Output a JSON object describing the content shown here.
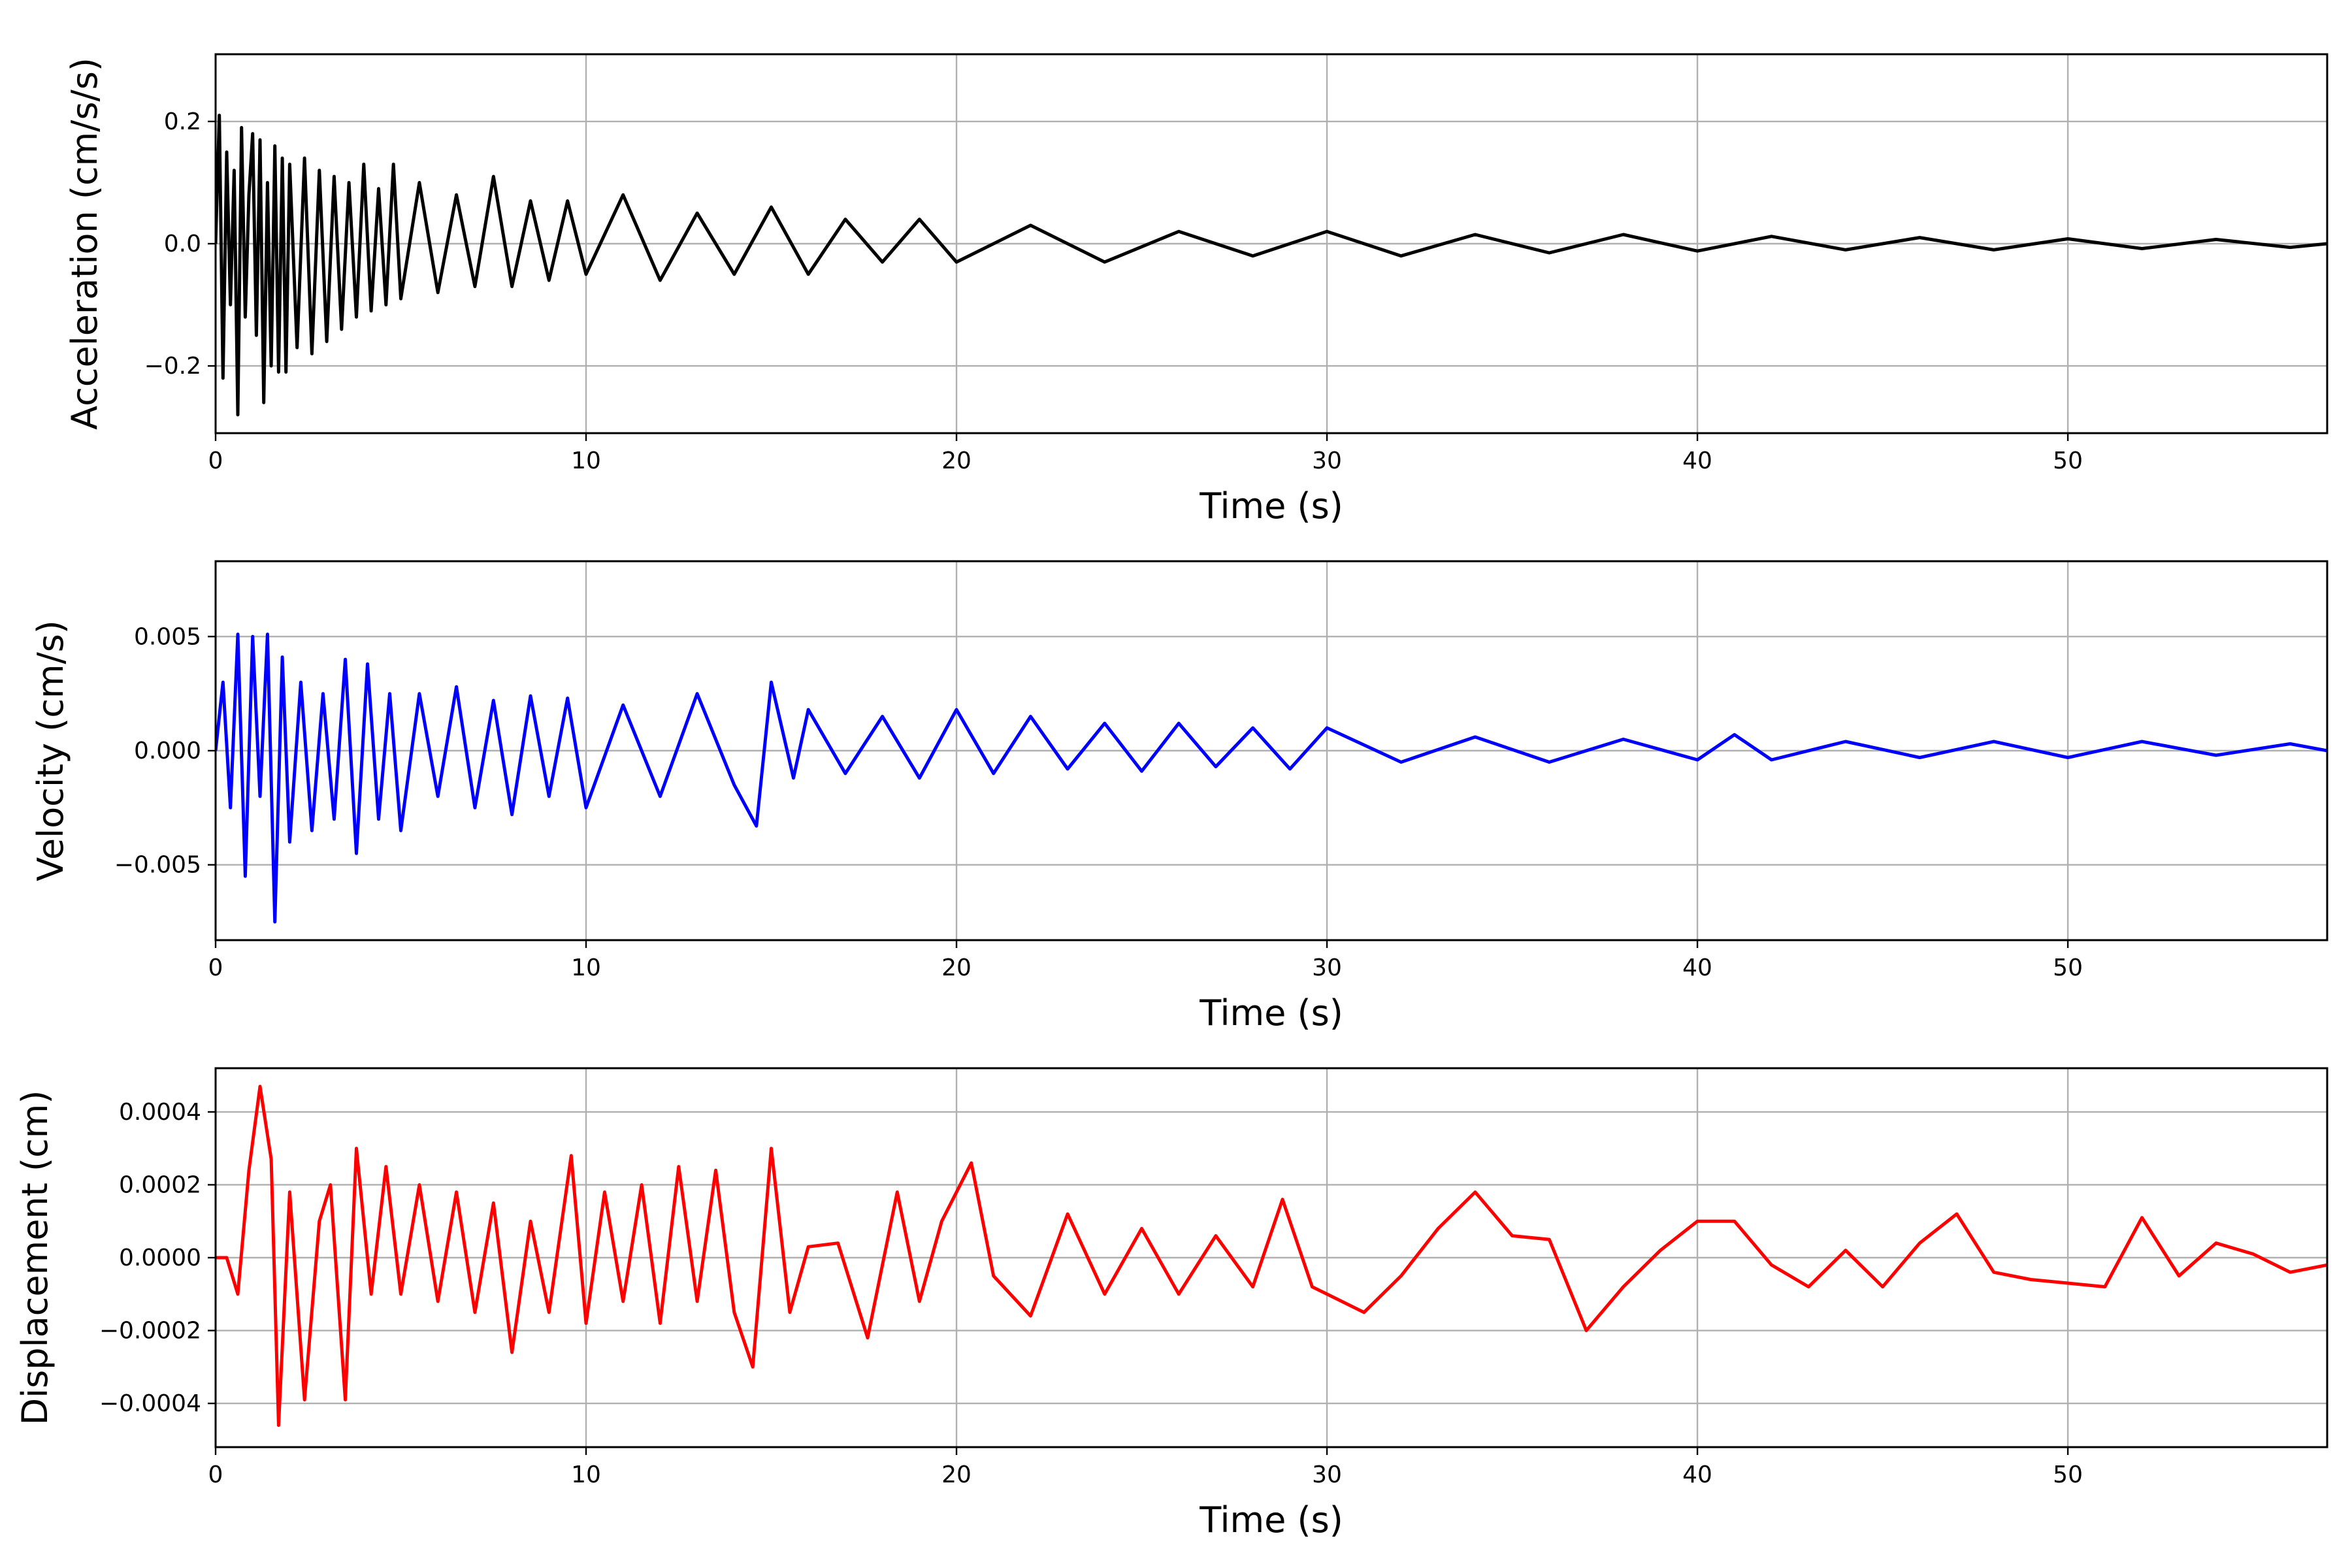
{
  "chart_data": [
    {
      "type": "line",
      "panel": "acceleration",
      "title": "",
      "xlabel": "Time (s)",
      "ylabel": "Acceleration (cm/s/s)",
      "xlim": [
        0,
        57
      ],
      "ylim": [
        -0.31,
        0.31
      ],
      "xticks": [
        0,
        10,
        20,
        30,
        40,
        50
      ],
      "xtick_labels": [
        "0",
        "10",
        "20",
        "30",
        "40",
        "50"
      ],
      "yticks": [
        0.2,
        0.0,
        -0.2
      ],
      "ytick_labels": [
        "0.2",
        "0.0",
        "−0.2"
      ],
      "grid": true,
      "series": [
        {
          "color": "#000000",
          "x": [
            0,
            0.1,
            0.2,
            0.3,
            0.4,
            0.5,
            0.6,
            0.7,
            0.8,
            0.9,
            1.0,
            1.1,
            1.2,
            1.3,
            1.4,
            1.5,
            1.6,
            1.7,
            1.8,
            1.9,
            2.0,
            2.2,
            2.4,
            2.6,
            2.8,
            3.0,
            3.2,
            3.4,
            3.6,
            3.8,
            4.0,
            4.2,
            4.4,
            4.6,
            4.8,
            5.0,
            5.5,
            6.0,
            6.5,
            7.0,
            7.5,
            8.0,
            8.5,
            9.0,
            9.5,
            10.0,
            11.0,
            12.0,
            13.0,
            14.0,
            15.0,
            16.0,
            17.0,
            18.0,
            19.0,
            20.0,
            22.0,
            24.0,
            26.0,
            28.0,
            30.0,
            32.0,
            34.0,
            36.0,
            38.0,
            40.0,
            42.0,
            44.0,
            46.0,
            48.0,
            50.0,
            52.0,
            54.0,
            56.0,
            57.0
          ],
          "y": [
            0.0,
            0.21,
            -0.22,
            0.15,
            -0.1,
            0.12,
            -0.28,
            0.19,
            -0.12,
            0.08,
            0.18,
            -0.15,
            0.17,
            -0.26,
            0.1,
            -0.2,
            0.16,
            -0.21,
            0.14,
            -0.21,
            0.13,
            -0.17,
            0.14,
            -0.18,
            0.12,
            -0.16,
            0.11,
            -0.14,
            0.1,
            -0.12,
            0.13,
            -0.11,
            0.09,
            -0.1,
            0.13,
            -0.09,
            0.1,
            -0.08,
            0.08,
            -0.07,
            0.11,
            -0.07,
            0.07,
            -0.06,
            0.07,
            -0.05,
            0.08,
            -0.06,
            0.05,
            -0.05,
            0.06,
            -0.05,
            0.04,
            -0.03,
            0.04,
            -0.03,
            0.03,
            -0.03,
            0.02,
            -0.02,
            0.02,
            -0.02,
            0.015,
            -0.015,
            0.015,
            -0.012,
            0.012,
            -0.01,
            0.01,
            -0.01,
            0.008,
            -0.008,
            0.007,
            -0.006,
            0.0
          ]
        }
      ]
    },
    {
      "type": "line",
      "panel": "velocity",
      "title": "",
      "xlabel": "Time (s)",
      "ylabel": "Velocity (cm/s)",
      "xlim": [
        0,
        57
      ],
      "ylim": [
        -0.0083,
        0.0083
      ],
      "xticks": [
        0,
        10,
        20,
        30,
        40,
        50
      ],
      "xtick_labels": [
        "0",
        "10",
        "20",
        "30",
        "40",
        "50"
      ],
      "yticks": [
        0.005,
        0.0,
        -0.005
      ],
      "ytick_labels": [
        "0.005",
        "0.000",
        "−0.005"
      ],
      "grid": true,
      "series": [
        {
          "color": "#0000ff",
          "x": [
            0,
            0.2,
            0.4,
            0.6,
            0.8,
            1.0,
            1.2,
            1.4,
            1.6,
            1.8,
            2.0,
            2.3,
            2.6,
            2.9,
            3.2,
            3.5,
            3.8,
            4.1,
            4.4,
            4.7,
            5.0,
            5.5,
            6.0,
            6.5,
            7.0,
            7.5,
            8.0,
            8.5,
            9.0,
            9.5,
            10.0,
            11.0,
            12.0,
            13.0,
            14.0,
            14.6,
            15.0,
            15.6,
            16.0,
            17.0,
            18.0,
            19.0,
            20.0,
            21.0,
            22.0,
            23.0,
            24.0,
            25.0,
            26.0,
            27.0,
            28.0,
            29.0,
            30.0,
            32.0,
            34.0,
            36.0,
            38.0,
            40.0,
            41.0,
            42.0,
            44.0,
            46.0,
            48.0,
            50.0,
            52.0,
            54.0,
            56.0,
            57.0
          ],
          "y": [
            0.0,
            0.003,
            -0.0025,
            0.0051,
            -0.0055,
            0.005,
            -0.002,
            0.0051,
            -0.0075,
            0.0041,
            -0.004,
            0.003,
            -0.0035,
            0.0025,
            -0.003,
            0.004,
            -0.0045,
            0.0038,
            -0.003,
            0.0025,
            -0.0035,
            0.0025,
            -0.002,
            0.0028,
            -0.0025,
            0.0022,
            -0.0028,
            0.0024,
            -0.002,
            0.0023,
            -0.0025,
            0.002,
            -0.002,
            0.0025,
            -0.0015,
            -0.0033,
            0.003,
            -0.0012,
            0.0018,
            -0.001,
            0.0015,
            -0.0012,
            0.0018,
            -0.001,
            0.0015,
            -0.0008,
            0.0012,
            -0.0009,
            0.0012,
            -0.0007,
            0.001,
            -0.0008,
            0.001,
            -0.0005,
            0.0006,
            -0.0005,
            0.0005,
            -0.0004,
            0.0007,
            -0.0004,
            0.0004,
            -0.0003,
            0.0004,
            -0.0003,
            0.0004,
            -0.0002,
            0.0003,
            0.0
          ]
        }
      ]
    },
    {
      "type": "line",
      "panel": "displacement",
      "title": "",
      "xlabel": "Time (s)",
      "ylabel": "Displacement (cm)",
      "xlim": [
        0,
        57
      ],
      "ylim": [
        -0.00052,
        0.00052
      ],
      "xticks": [
        0,
        10,
        20,
        30,
        40,
        50
      ],
      "xtick_labels": [
        "0",
        "10",
        "20",
        "30",
        "40",
        "50"
      ],
      "yticks": [
        0.0004,
        0.0002,
        0.0,
        -0.0002,
        -0.0004
      ],
      "ytick_labels": [
        "0.0004",
        "0.0002",
        "0.0000",
        "−0.0002",
        "−0.0004"
      ],
      "grid": true,
      "series": [
        {
          "color": "#ff0000",
          "x": [
            0,
            0.3,
            0.6,
            0.9,
            1.2,
            1.5,
            1.7,
            2.0,
            2.4,
            2.8,
            3.1,
            3.5,
            3.8,
            4.2,
            4.6,
            5.0,
            5.5,
            6.0,
            6.5,
            7.0,
            7.5,
            8.0,
            8.5,
            9.0,
            9.6,
            10.0,
            10.5,
            11.0,
            11.5,
            12.0,
            12.5,
            13.0,
            13.5,
            14.0,
            14.5,
            15.0,
            15.5,
            16.0,
            16.8,
            17.6,
            18.4,
            19.0,
            19.6,
            20.4,
            21.0,
            22.0,
            23.0,
            24.0,
            25.0,
            26.0,
            27.0,
            28.0,
            28.8,
            29.6,
            30.0,
            31.0,
            32.0,
            33.0,
            34.0,
            35.0,
            36.0,
            37.0,
            38.0,
            39.0,
            40.0,
            41.0,
            42.0,
            43.0,
            44.0,
            45.0,
            46.0,
            47.0,
            48.0,
            49.0,
            50.0,
            51.0,
            52.0,
            53.0,
            54.0,
            55.0,
            56.0,
            57.0
          ],
          "y": [
            0.0,
            0.0,
            -0.0001,
            0.00024,
            0.00047,
            0.00027,
            -0.00046,
            0.00018,
            -0.00039,
            0.0001,
            0.0002,
            -0.00039,
            0.0003,
            -0.0001,
            0.00025,
            -0.0001,
            0.0002,
            -0.00012,
            0.00018,
            -0.00015,
            0.00015,
            -0.00026,
            0.0001,
            -0.00015,
            0.00028,
            -0.00018,
            0.00018,
            -0.00012,
            0.0002,
            -0.00018,
            0.00025,
            -0.00012,
            0.00024,
            -0.00015,
            -0.0003,
            0.0003,
            -0.00015,
            3e-05,
            4e-05,
            -0.00022,
            0.00018,
            -0.00012,
            0.0001,
            0.00026,
            -5e-05,
            -0.00016,
            0.00012,
            -0.0001,
            8e-05,
            -0.0001,
            6e-05,
            -8e-05,
            0.00016,
            -8e-05,
            -0.0001,
            -0.00015,
            -5e-05,
            8e-05,
            0.00018,
            6e-05,
            5e-05,
            -0.0002,
            -8e-05,
            2e-05,
            0.0001,
            0.0001,
            -2e-05,
            -8e-05,
            2e-05,
            -8e-05,
            4e-05,
            0.00012,
            -4e-05,
            -6e-05,
            -7e-05,
            -8e-05,
            0.00011,
            -5e-05,
            4e-05,
            1e-05,
            -4e-05,
            -2e-05
          ]
        }
      ]
    }
  ]
}
